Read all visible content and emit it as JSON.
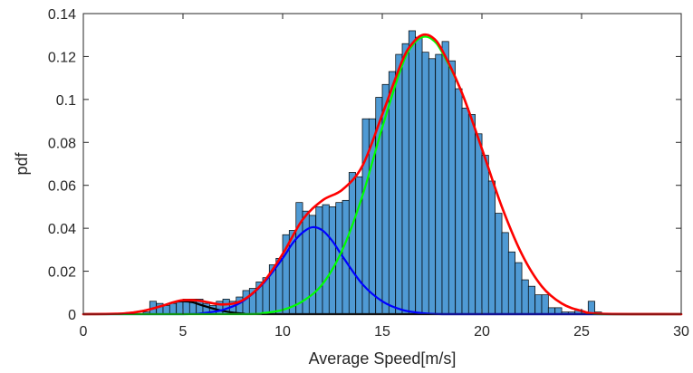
{
  "chart_data": {
    "type": "bar",
    "xlabel": "Average Speed[m/s]",
    "ylabel": "pdf",
    "xlim": [
      0,
      30
    ],
    "ylim": [
      0,
      0.14
    ],
    "xticks": [
      0,
      5,
      10,
      15,
      20,
      25,
      30
    ],
    "xtick_labels": [
      "0",
      "5",
      "10",
      "15",
      "20",
      "25",
      "30"
    ],
    "yticks": [
      0,
      0.02,
      0.04,
      0.06,
      0.08,
      0.1,
      0.12,
      0.14
    ],
    "ytick_labels": [
      "0",
      "0.02",
      "0.04",
      "0.06",
      "0.08",
      "0.1",
      "0.12",
      "0.14"
    ],
    "grid": false,
    "histogram": {
      "bin_width": 0.3333,
      "bin_starts": [
        3.0,
        3.33,
        3.67,
        4.0,
        4.33,
        4.67,
        5.0,
        5.33,
        5.67,
        6.0,
        6.33,
        6.67,
        7.0,
        7.33,
        7.67,
        8.0,
        8.33,
        8.67,
        9.0,
        9.33,
        9.67,
        10.0,
        10.33,
        10.67,
        11.0,
        11.33,
        11.67,
        12.0,
        12.33,
        12.67,
        13.0,
        13.33,
        13.67,
        14.0,
        14.33,
        14.67,
        15.0,
        15.33,
        15.67,
        16.0,
        16.33,
        16.67,
        17.0,
        17.33,
        17.67,
        18.0,
        18.33,
        18.67,
        19.0,
        19.33,
        19.67,
        20.0,
        20.33,
        20.67,
        21.0,
        21.33,
        21.67,
        22.0,
        22.33,
        22.67,
        23.0,
        23.33,
        23.67,
        24.0,
        24.33,
        24.67,
        25.0,
        25.33,
        25.67
      ],
      "values": [
        0.001,
        0.006,
        0.005,
        0.004,
        0.005,
        0.006,
        0.007,
        0.007,
        0.007,
        0.005,
        0.004,
        0.006,
        0.007,
        0.006,
        0.008,
        0.011,
        0.012,
        0.015,
        0.017,
        0.023,
        0.026,
        0.037,
        0.039,
        0.052,
        0.048,
        0.046,
        0.05,
        0.051,
        0.05,
        0.052,
        0.053,
        0.066,
        0.064,
        0.091,
        0.091,
        0.101,
        0.107,
        0.113,
        0.121,
        0.126,
        0.132,
        0.129,
        0.122,
        0.119,
        0.121,
        0.127,
        0.118,
        0.105,
        0.096,
        0.093,
        0.084,
        0.074,
        0.062,
        0.047,
        0.038,
        0.029,
        0.024,
        0.016,
        0.013,
        0.009,
        0.009,
        0.003,
        0.003,
        0.001,
        0.001,
        0.002,
        0.001,
        0.006,
        0.001
      ],
      "color": "#4f9ad4"
    },
    "series": [
      {
        "kind": "component",
        "color": "#000000",
        "x": [
          0,
          2,
          3,
          4,
          4.5,
          5,
          5.5,
          6,
          7,
          8,
          10,
          30
        ],
        "y": [
          0,
          0.0003,
          0.0015,
          0.004,
          0.0055,
          0.006,
          0.0055,
          0.004,
          0.0015,
          0.0003,
          0,
          0
        ]
      },
      {
        "kind": "component",
        "color": "#0000ff",
        "x": [
          0,
          5,
          6,
          7,
          8,
          9,
          10,
          10.5,
          11,
          11.5,
          12,
          12.5,
          13,
          14,
          15,
          16,
          17,
          18,
          19,
          30
        ],
        "y": [
          0,
          0,
          0.0005,
          0.002,
          0.006,
          0.014,
          0.026,
          0.033,
          0.038,
          0.0405,
          0.039,
          0.034,
          0.027,
          0.014,
          0.006,
          0.002,
          0.0005,
          0,
          0,
          0
        ]
      },
      {
        "kind": "component",
        "color": "#00ff00",
        "x": [
          0,
          8,
          9,
          10,
          11,
          12,
          13,
          14,
          15,
          16,
          16.5,
          17,
          17.5,
          18,
          19,
          20,
          21,
          22,
          23,
          24,
          25,
          26,
          30
        ],
        "y": [
          0,
          0,
          0.0005,
          0.002,
          0.006,
          0.014,
          0.03,
          0.055,
          0.087,
          0.116,
          0.125,
          0.129,
          0.128,
          0.122,
          0.103,
          0.077,
          0.05,
          0.028,
          0.013,
          0.005,
          0.0015,
          0,
          0
        ]
      },
      {
        "kind": "mixture",
        "color": "#ff0000",
        "x": [
          0,
          2,
          3,
          4,
          4.5,
          5,
          5.5,
          6,
          7,
          8,
          9,
          10,
          11,
          12,
          13,
          14,
          15,
          16,
          16.5,
          17,
          17.5,
          18,
          19,
          20,
          21,
          22,
          23,
          24,
          25,
          26,
          30
        ],
        "y": [
          0,
          0.0003,
          0.0015,
          0.004,
          0.0055,
          0.0065,
          0.0065,
          0.006,
          0.0045,
          0.0065,
          0.0145,
          0.028,
          0.044,
          0.053,
          0.058,
          0.069,
          0.093,
          0.118,
          0.126,
          0.13,
          0.129,
          0.123,
          0.103,
          0.077,
          0.05,
          0.028,
          0.013,
          0.005,
          0.0015,
          0.0002,
          0
        ]
      }
    ]
  }
}
